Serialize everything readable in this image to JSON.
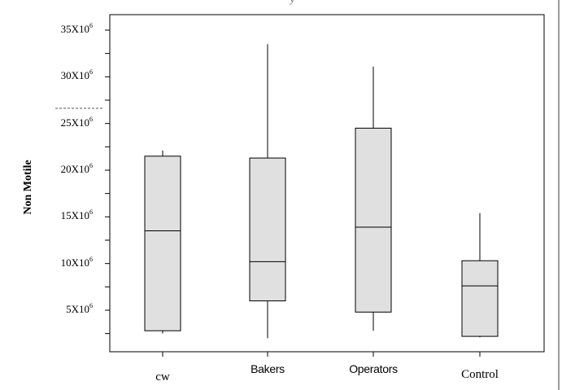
{
  "chart_data": {
    "type": "box",
    "title": "",
    "ylabel": "Non Motile",
    "xlabel": "",
    "categories": [
      "cw",
      "Bakers",
      "Operators",
      "Control"
    ],
    "ylim": [
      0,
      37000000
    ],
    "y_ticks": [
      {
        "value": 35000000,
        "base": "35X10",
        "exp": "6"
      },
      {
        "value": 30000000,
        "base": "30X10",
        "exp": "6"
      },
      {
        "value": 25000000,
        "base": "25X10",
        "exp": "6"
      },
      {
        "value": 20000000,
        "base": "20X10",
        "exp": "6"
      },
      {
        "value": 15000000,
        "base": "15X10",
        "exp": "6"
      },
      {
        "value": 10000000,
        "base": "10X10",
        "exp": "6"
      },
      {
        "value": 5000000,
        "base": "5X10",
        "exp": "6"
      }
    ],
    "series": [
      {
        "category": "cw",
        "min": 2500000,
        "q1": 2800000,
        "median": 13500000,
        "q3": 21500000,
        "max": 22100000
      },
      {
        "category": "Bakers",
        "min": 2000000,
        "q1": 6000000,
        "median": 10200000,
        "q3": 21300000,
        "max": 33500000
      },
      {
        "category": "Operators",
        "min": 2800000,
        "q1": 4800000,
        "median": 13900000,
        "q3": 24500000,
        "max": 31100000
      },
      {
        "category": "Control",
        "min": 2100000,
        "q1": 2200000,
        "median": 7600000,
        "q3": 10300000,
        "max": 15400000
      }
    ],
    "box_color": "#e0e0e0",
    "line_color": "#000000",
    "grid": false,
    "top_title_fragment": "y"
  }
}
